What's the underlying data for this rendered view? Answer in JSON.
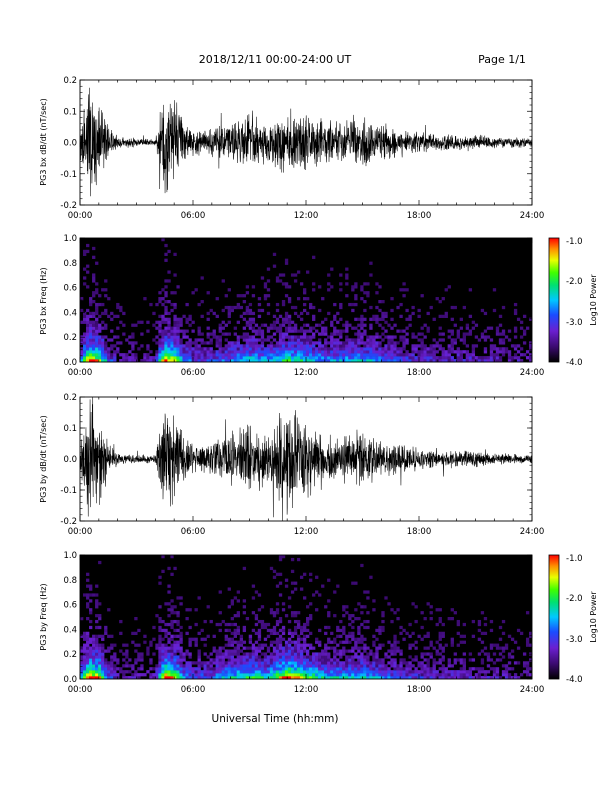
{
  "header": {
    "title": "2018/12/11   00:00-24:00 UT",
    "page": "Page 1/1"
  },
  "chart_data": [
    {
      "type": "line",
      "name": "bx-timeseries",
      "ylabel": "PG3 bx dB/dt (nT/sec)",
      "xlim": [
        "00:00",
        "24:00"
      ],
      "ylim": [
        -0.2,
        0.2
      ],
      "x_ticks": [
        "00:00",
        "06:00",
        "12:00",
        "18:00",
        "24:00"
      ],
      "y_ticks": [
        "-0.2",
        "-0.1",
        "0.0",
        "0.1",
        "0.2"
      ],
      "activity_envelope": {
        "hours": [
          0,
          0.5,
          1,
          1.5,
          2,
          3,
          4,
          4.5,
          5,
          5.5,
          6,
          7,
          8,
          9,
          10,
          11,
          12,
          13,
          14,
          15,
          16,
          17,
          18,
          19,
          20,
          21,
          22,
          23,
          24
        ],
        "amplitude": [
          0.06,
          0.2,
          0.16,
          0.06,
          0.02,
          0.015,
          0.015,
          0.2,
          0.16,
          0.08,
          0.05,
          0.05,
          0.07,
          0.1,
          0.08,
          0.12,
          0.1,
          0.08,
          0.08,
          0.09,
          0.07,
          0.05,
          0.04,
          0.03,
          0.03,
          0.03,
          0.02,
          0.02,
          0.015
        ]
      }
    },
    {
      "type": "heatmap",
      "name": "bx-spectrogram",
      "ylabel": "PG3 bx Freq (Hz)",
      "xlim": [
        "00:00",
        "24:00"
      ],
      "ylim": [
        0,
        1.0
      ],
      "x_ticks": [
        "00:00",
        "06:00",
        "12:00",
        "18:00",
        "24:00"
      ],
      "y_ticks": [
        "0.0",
        "0.2",
        "0.4",
        "0.6",
        "0.8",
        "1.0"
      ],
      "colorbar": {
        "label": "Log10 Power",
        "range": [
          -4.0,
          -1.0
        ],
        "ticks": [
          "-1.0",
          "-2.0",
          "-3.0",
          "-4.0"
        ]
      }
    },
    {
      "type": "line",
      "name": "by-timeseries",
      "ylabel": "PG3 by dB/dt (nT/sec)",
      "xlim": [
        "00:00",
        "24:00"
      ],
      "ylim": [
        -0.2,
        0.2
      ],
      "x_ticks": [
        "00:00",
        "06:00",
        "12:00",
        "18:00",
        "24:00"
      ],
      "y_ticks": [
        "-0.2",
        "-0.1",
        "0.0",
        "0.1",
        "0.2"
      ],
      "activity_envelope": {
        "hours": [
          0,
          0.5,
          1,
          1.5,
          2,
          3,
          4,
          4.5,
          5,
          5.5,
          6,
          7,
          8,
          9,
          10,
          11,
          12,
          13,
          14,
          15,
          16,
          17,
          18,
          19,
          20,
          21,
          22,
          23,
          24
        ],
        "amplitude": [
          0.07,
          0.2,
          0.18,
          0.06,
          0.02,
          0.015,
          0.015,
          0.2,
          0.18,
          0.08,
          0.05,
          0.06,
          0.1,
          0.12,
          0.1,
          0.2,
          0.14,
          0.1,
          0.09,
          0.1,
          0.07,
          0.05,
          0.04,
          0.03,
          0.03,
          0.03,
          0.02,
          0.02,
          0.015
        ]
      }
    },
    {
      "type": "heatmap",
      "name": "by-spectrogram",
      "ylabel": "PG3 by Freq (Hz)",
      "xlim": [
        "00:00",
        "24:00"
      ],
      "ylim": [
        0,
        1.0
      ],
      "x_ticks": [
        "00:00",
        "06:00",
        "12:00",
        "18:00",
        "24:00"
      ],
      "y_ticks": [
        "0.0",
        "0.2",
        "0.4",
        "0.6",
        "0.8",
        "1.0"
      ],
      "colorbar": {
        "label": "Log10 Power",
        "range": [
          -4.0,
          -1.0
        ],
        "ticks": [
          "-1.0",
          "-2.0",
          "-3.0",
          "-4.0"
        ]
      }
    }
  ],
  "footer": {
    "xlabel": "Universal Time (hh:mm)"
  }
}
